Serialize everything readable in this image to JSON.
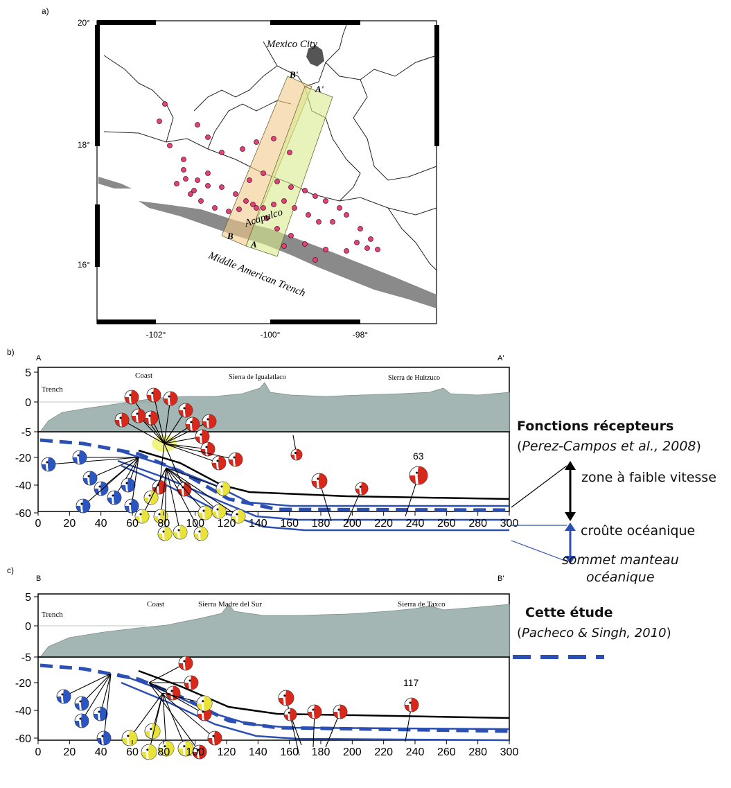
{
  "panels": {
    "a_label": "a)",
    "b_label": "b)",
    "c_label": "c)"
  },
  "map": {
    "lat_labels": [
      "20°",
      "18°",
      "16°"
    ],
    "lon_labels": [
      "-102°",
      "-100°",
      "-98°"
    ],
    "place_labels": {
      "mexico_city": "Mexico City",
      "acapulco": "Acapulco",
      "trench": "Middle American Trench"
    },
    "profile_labels": {
      "a": "A",
      "a_prime": "A'",
      "b": "B",
      "b_prime": "B'"
    }
  },
  "profile_b": {
    "start": "A",
    "end": "A'",
    "labels": {
      "trench": "Trench",
      "coast": "Coast",
      "sierra1": "Sierra de Igualatlaco",
      "sierra2": "Sierra de Huitzuco"
    },
    "event_number": "63"
  },
  "profile_c": {
    "start": "B",
    "end": "B'",
    "labels": {
      "trench": "Trench",
      "coast": "Coast",
      "sierra1": "Sierra Madre del Sur",
      "sierra2": "Sierra de Taxco"
    },
    "event_number": "117"
  },
  "axes": {
    "x_ticks": [
      "0",
      "20",
      "40",
      "60",
      "80",
      "100",
      "120",
      "140",
      "160",
      "180",
      "200",
      "220",
      "240",
      "260",
      "280",
      "300"
    ],
    "y_ticks": [
      "5",
      "0",
      "-5",
      "-20",
      "-40",
      "-60"
    ]
  },
  "annotations": {
    "rf_title": "Fonctions récepteurs",
    "rf_ref": "Perez-Campos et al., 2008",
    "low_velocity": "zone à faible vitesse",
    "oceanic_crust": "croûte océanique",
    "mantle_top_1": "sommet manteau",
    "mantle_top_2": "océanique",
    "study_title": "Cette étude",
    "study_ref": "Pacheco & Singh, 2010"
  },
  "colors": {
    "blue": "#2b4fb3",
    "red": "#d8281c",
    "yellow": "#e8e23a",
    "blue_event": "#2b55c0",
    "topo": "#a4b6b4",
    "seismicity": "#e0437a",
    "trench_fill": "#8a8a8a"
  }
}
